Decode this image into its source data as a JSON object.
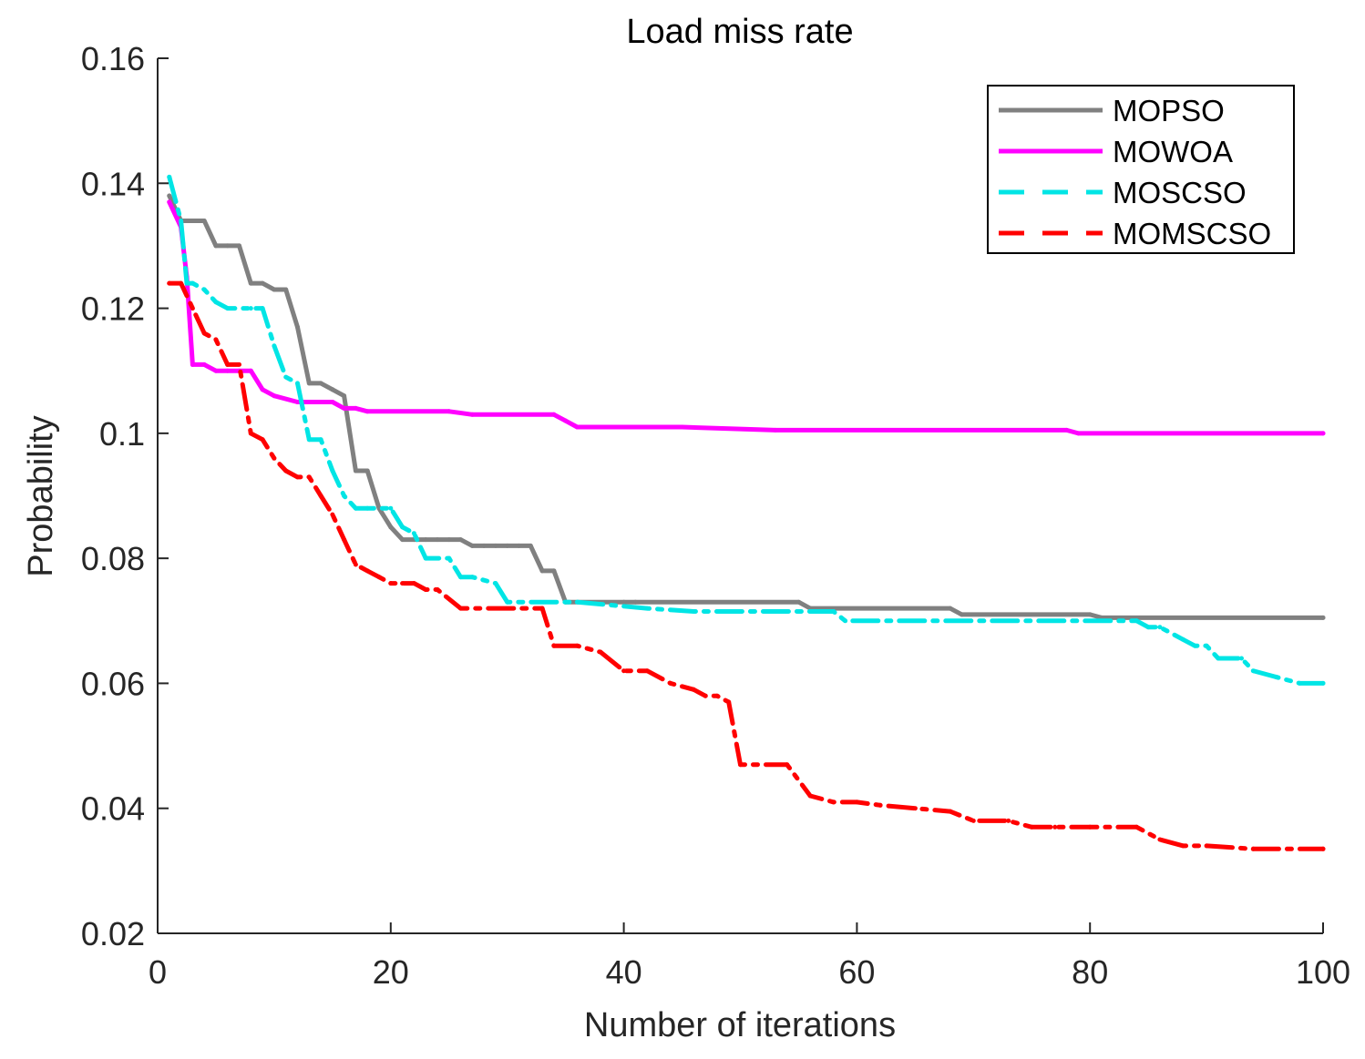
{
  "chart_data": {
    "type": "line",
    "title": "Load miss rate",
    "xlabel": "Number of iterations",
    "ylabel": "Probability",
    "xlim": [
      0,
      100
    ],
    "ylim": [
      0.02,
      0.16
    ],
    "xticks": [
      0,
      20,
      40,
      60,
      80,
      100
    ],
    "xtick_labels": [
      "0",
      "20",
      "40",
      "60",
      "80",
      "100"
    ],
    "yticks": [
      0.02,
      0.04,
      0.06,
      0.08,
      0.1,
      0.12,
      0.14,
      0.16
    ],
    "ytick_labels": [
      "0.02",
      "0.04",
      "0.06",
      "0.08",
      "0.1",
      "0.12",
      "0.14",
      "0.16"
    ],
    "legend_position": "top-right",
    "series": [
      {
        "name": "MOPSO",
        "color": "#808080",
        "style": "solid",
        "points": [
          [
            1,
            0.138
          ],
          [
            2,
            0.134
          ],
          [
            3,
            0.134
          ],
          [
            4,
            0.134
          ],
          [
            5,
            0.13
          ],
          [
            6,
            0.13
          ],
          [
            7,
            0.13
          ],
          [
            8,
            0.124
          ],
          [
            9,
            0.124
          ],
          [
            10,
            0.123
          ],
          [
            11,
            0.123
          ],
          [
            12,
            0.117
          ],
          [
            13,
            0.108
          ],
          [
            14,
            0.108
          ],
          [
            15,
            0.107
          ],
          [
            16,
            0.106
          ],
          [
            17,
            0.094
          ],
          [
            18,
            0.094
          ],
          [
            19,
            0.088
          ],
          [
            20,
            0.085
          ],
          [
            21,
            0.083
          ],
          [
            22,
            0.083
          ],
          [
            23,
            0.083
          ],
          [
            24,
            0.083
          ],
          [
            25,
            0.083
          ],
          [
            26,
            0.083
          ],
          [
            27,
            0.082
          ],
          [
            28,
            0.082
          ],
          [
            29,
            0.082
          ],
          [
            30,
            0.082
          ],
          [
            31,
            0.082
          ],
          [
            32,
            0.082
          ],
          [
            33,
            0.078
          ],
          [
            34,
            0.078
          ],
          [
            35,
            0.073
          ],
          [
            40,
            0.073
          ],
          [
            41,
            0.073
          ],
          [
            55,
            0.073
          ],
          [
            56,
            0.072
          ],
          [
            68,
            0.072
          ],
          [
            69,
            0.071
          ],
          [
            80,
            0.071
          ],
          [
            81,
            0.0705
          ],
          [
            100,
            0.0705
          ]
        ]
      },
      {
        "name": "MOWOA",
        "color": "#FF00FF",
        "style": "solid",
        "points": [
          [
            1,
            0.137
          ],
          [
            2,
            0.133
          ],
          [
            2.5,
            0.125
          ],
          [
            3,
            0.111
          ],
          [
            4,
            0.111
          ],
          [
            5,
            0.11
          ],
          [
            6,
            0.11
          ],
          [
            7,
            0.11
          ],
          [
            8,
            0.11
          ],
          [
            9,
            0.107
          ],
          [
            10,
            0.106
          ],
          [
            12,
            0.105
          ],
          [
            15,
            0.105
          ],
          [
            16,
            0.104
          ],
          [
            17,
            0.104
          ],
          [
            18,
            0.1035
          ],
          [
            25,
            0.1035
          ],
          [
            27,
            0.103
          ],
          [
            34,
            0.103
          ],
          [
            35,
            0.102
          ],
          [
            36,
            0.101
          ],
          [
            45,
            0.101
          ],
          [
            53,
            0.1005
          ],
          [
            78,
            0.1005
          ],
          [
            79,
            0.1
          ],
          [
            100,
            0.1
          ]
        ]
      },
      {
        "name": "MOSCSO",
        "color": "#00E5E5",
        "style": "dashdot",
        "points": [
          [
            1,
            0.141
          ],
          [
            2,
            0.134
          ],
          [
            2.5,
            0.124
          ],
          [
            3,
            0.124
          ],
          [
            4,
            0.123
          ],
          [
            5,
            0.121
          ],
          [
            6,
            0.12
          ],
          [
            8,
            0.12
          ],
          [
            9,
            0.12
          ],
          [
            10,
            0.114
          ],
          [
            11,
            0.109
          ],
          [
            12,
            0.108
          ],
          [
            13,
            0.099
          ],
          [
            14,
            0.099
          ],
          [
            15,
            0.094
          ],
          [
            16,
            0.09
          ],
          [
            17,
            0.088
          ],
          [
            18,
            0.088
          ],
          [
            20,
            0.088
          ],
          [
            21,
            0.085
          ],
          [
            22,
            0.084
          ],
          [
            23,
            0.08
          ],
          [
            25,
            0.08
          ],
          [
            26,
            0.077
          ],
          [
            27,
            0.077
          ],
          [
            29,
            0.076
          ],
          [
            30,
            0.073
          ],
          [
            35,
            0.073
          ],
          [
            36,
            0.073
          ],
          [
            42,
            0.072
          ],
          [
            46,
            0.0715
          ],
          [
            58,
            0.0715
          ],
          [
            59,
            0.07
          ],
          [
            84,
            0.07
          ],
          [
            85,
            0.069
          ],
          [
            86,
            0.069
          ],
          [
            88,
            0.067
          ],
          [
            89,
            0.066
          ],
          [
            90,
            0.066
          ],
          [
            91,
            0.064
          ],
          [
            93,
            0.064
          ],
          [
            94,
            0.062
          ],
          [
            96,
            0.061
          ],
          [
            98,
            0.06
          ],
          [
            100,
            0.06
          ]
        ]
      },
      {
        "name": "MOMSCSO",
        "color": "#FF0000",
        "style": "dashdot",
        "points": [
          [
            1,
            0.124
          ],
          [
            2,
            0.124
          ],
          [
            3,
            0.12
          ],
          [
            4,
            0.116
          ],
          [
            5,
            0.115
          ],
          [
            6,
            0.111
          ],
          [
            7,
            0.111
          ],
          [
            8,
            0.1
          ],
          [
            9,
            0.099
          ],
          [
            10,
            0.096
          ],
          [
            11,
            0.094
          ],
          [
            12,
            0.093
          ],
          [
            13,
            0.093
          ],
          [
            14,
            0.09
          ],
          [
            15,
            0.087
          ],
          [
            16,
            0.083
          ],
          [
            17,
            0.079
          ],
          [
            18,
            0.078
          ],
          [
            19,
            0.077
          ],
          [
            20,
            0.076
          ],
          [
            21,
            0.076
          ],
          [
            22,
            0.076
          ],
          [
            23,
            0.075
          ],
          [
            24,
            0.075
          ],
          [
            26,
            0.072
          ],
          [
            33,
            0.072
          ],
          [
            34,
            0.066
          ],
          [
            36,
            0.066
          ],
          [
            38,
            0.065
          ],
          [
            40,
            0.062
          ],
          [
            42,
            0.062
          ],
          [
            44,
            0.06
          ],
          [
            46,
            0.059
          ],
          [
            47,
            0.058
          ],
          [
            48,
            0.058
          ],
          [
            49,
            0.057
          ],
          [
            50,
            0.047
          ],
          [
            54,
            0.047
          ],
          [
            56,
            0.042
          ],
          [
            58,
            0.041
          ],
          [
            60,
            0.041
          ],
          [
            62,
            0.0405
          ],
          [
            65,
            0.04
          ],
          [
            68,
            0.0395
          ],
          [
            70,
            0.038
          ],
          [
            73,
            0.038
          ],
          [
            75,
            0.037
          ],
          [
            77,
            0.037
          ],
          [
            80,
            0.037
          ],
          [
            84,
            0.037
          ],
          [
            86,
            0.035
          ],
          [
            88,
            0.034
          ],
          [
            90,
            0.034
          ],
          [
            94,
            0.0335
          ],
          [
            100,
            0.0335
          ]
        ]
      }
    ]
  }
}
